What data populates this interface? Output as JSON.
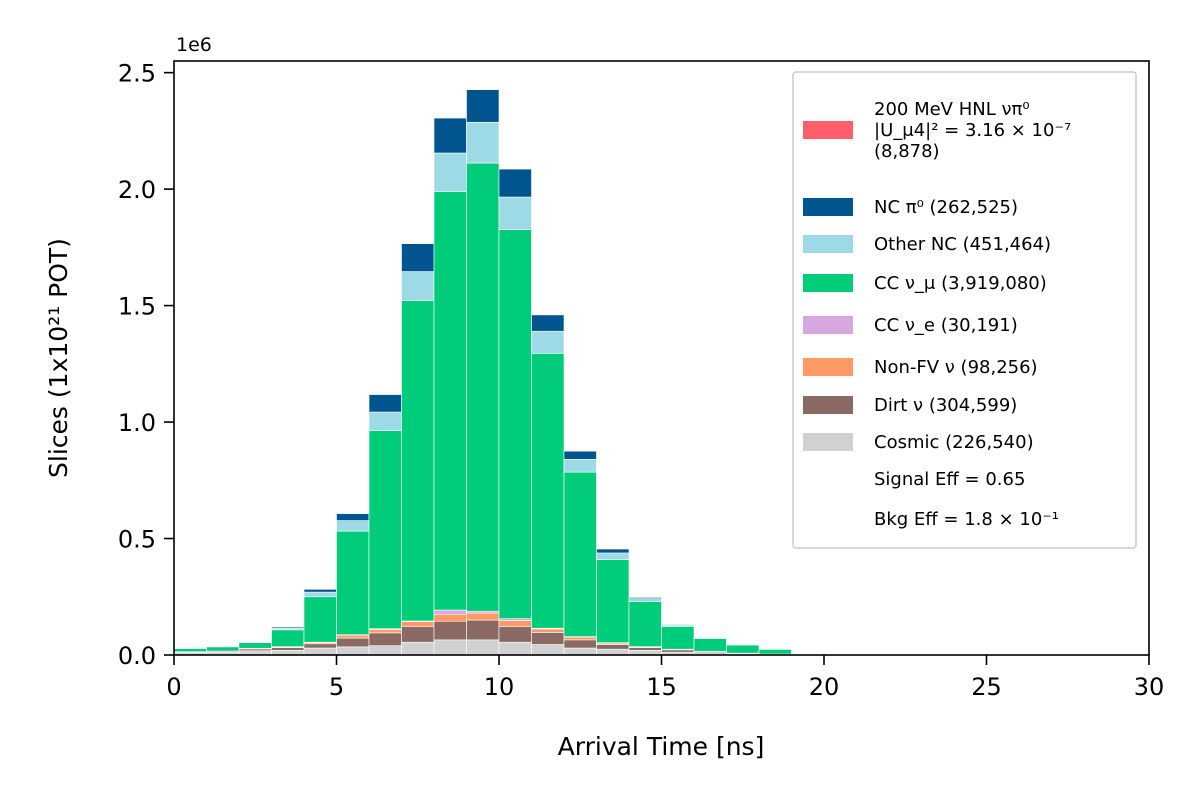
{
  "chart_data": {
    "type": "bar",
    "stacked": true,
    "xlabel": "Arrival Time [ns]",
    "ylabel": "Slices (1x10²¹ POT)",
    "y_offset_label": "1e6",
    "xlim": [
      0,
      30
    ],
    "ylim": [
      0,
      2.55
    ],
    "xticks": [
      "0",
      "5",
      "10",
      "15",
      "20",
      "25",
      "30"
    ],
    "yticks": [
      "0.0",
      "0.5",
      "1.0",
      "1.5",
      "2.0",
      "2.5"
    ],
    "bin_edges": [
      0,
      1,
      2,
      3,
      4,
      5,
      6,
      7,
      8,
      9,
      10,
      11,
      12,
      13,
      14,
      15,
      16,
      17,
      18,
      19
    ],
    "grid": false,
    "legend_position": "top-right",
    "series": [
      {
        "key": "cosmic",
        "color": "#d0d1d3",
        "values": [
          0.01,
          0.012,
          0.018,
          0.02,
          0.03,
          0.035,
          0.04,
          0.055,
          0.065,
          0.065,
          0.055,
          0.045,
          0.03,
          0.025,
          0.02,
          0.012,
          0.01,
          0.005,
          0.003
        ]
      },
      {
        "key": "dirt",
        "color": "#8b6a64",
        "values": [
          0.003,
          0.004,
          0.008,
          0.012,
          0.018,
          0.038,
          0.055,
          0.068,
          0.08,
          0.085,
          0.068,
          0.052,
          0.035,
          0.02,
          0.012,
          0.01,
          0.005,
          0.002,
          0.001
        ]
      },
      {
        "key": "nonfv",
        "color": "#ff9966",
        "values": [
          0.001,
          0.001,
          0.002,
          0.003,
          0.005,
          0.012,
          0.015,
          0.02,
          0.03,
          0.03,
          0.025,
          0.015,
          0.012,
          0.006,
          0.003,
          0.002,
          0.001,
          0.001,
          0.0
        ]
      },
      {
        "key": "ccnue",
        "color": "#d8a6e0",
        "values": [
          0.0,
          0.0,
          0.001,
          0.001,
          0.002,
          0.002,
          0.003,
          0.003,
          0.018,
          0.008,
          0.008,
          0.003,
          0.002,
          0.002,
          0.001,
          0.001,
          0.0,
          0.0,
          0.0
        ]
      },
      {
        "key": "ccnumu",
        "color": "#00cc7a",
        "values": [
          0.014,
          0.018,
          0.024,
          0.072,
          0.195,
          0.445,
          0.85,
          1.375,
          1.797,
          1.924,
          1.67,
          1.18,
          0.706,
          0.357,
          0.194,
          0.098,
          0.055,
          0.035,
          0.02
        ]
      },
      {
        "key": "othernc",
        "color": "#9ed9e6",
        "values": [
          0.001,
          0.002,
          0.003,
          0.007,
          0.02,
          0.045,
          0.08,
          0.125,
          0.165,
          0.175,
          0.14,
          0.095,
          0.055,
          0.028,
          0.012,
          0.005,
          0.003,
          0.001,
          0.0
        ]
      },
      {
        "key": "ncpi0",
        "color": "#00558e",
        "values": [
          0.001,
          0.001,
          0.002,
          0.005,
          0.012,
          0.03,
          0.075,
          0.12,
          0.15,
          0.14,
          0.12,
          0.07,
          0.035,
          0.017,
          0.005,
          0.003,
          0.001,
          0.0,
          0.0
        ]
      }
    ],
    "legend": [
      {
        "key": "hnl",
        "color": "#ff5e6c",
        "lines": [
          "200 MeV HNL νπ⁰",
          "|U_μ4|² = 3.16 × 10⁻⁷",
          " (8,878)"
        ]
      },
      {
        "key": "ncpi0",
        "color": "#00558e",
        "lines": [
          "NC π⁰ (262,525)"
        ]
      },
      {
        "key": "othernc",
        "color": "#9ed9e6",
        "lines": [
          "Other NC (451,464)"
        ]
      },
      {
        "key": "ccnumu",
        "color": "#00cc7a",
        "lines": [
          "CC ν_μ (3,919,080)"
        ]
      },
      {
        "key": "ccnue",
        "color": "#d8a6e0",
        "lines": [
          "CC ν_e (30,191)"
        ]
      },
      {
        "key": "nonfv",
        "color": "#ff9966",
        "lines": [
          "Non-FV ν (98,256)"
        ]
      },
      {
        "key": "dirt",
        "color": "#8b6a64",
        "lines": [
          "Dirt ν (304,599)"
        ]
      },
      {
        "key": "cosmic",
        "color": "#d0d1d3",
        "lines": [
          "Cosmic (226,540)"
        ]
      },
      {
        "key": "sig",
        "color": "",
        "lines": [
          "Signal Eff = 0.65"
        ]
      },
      {
        "key": "bkg",
        "color": "",
        "lines": [
          "Bkg Eff = 1.8 × 10⁻¹"
        ]
      }
    ]
  }
}
